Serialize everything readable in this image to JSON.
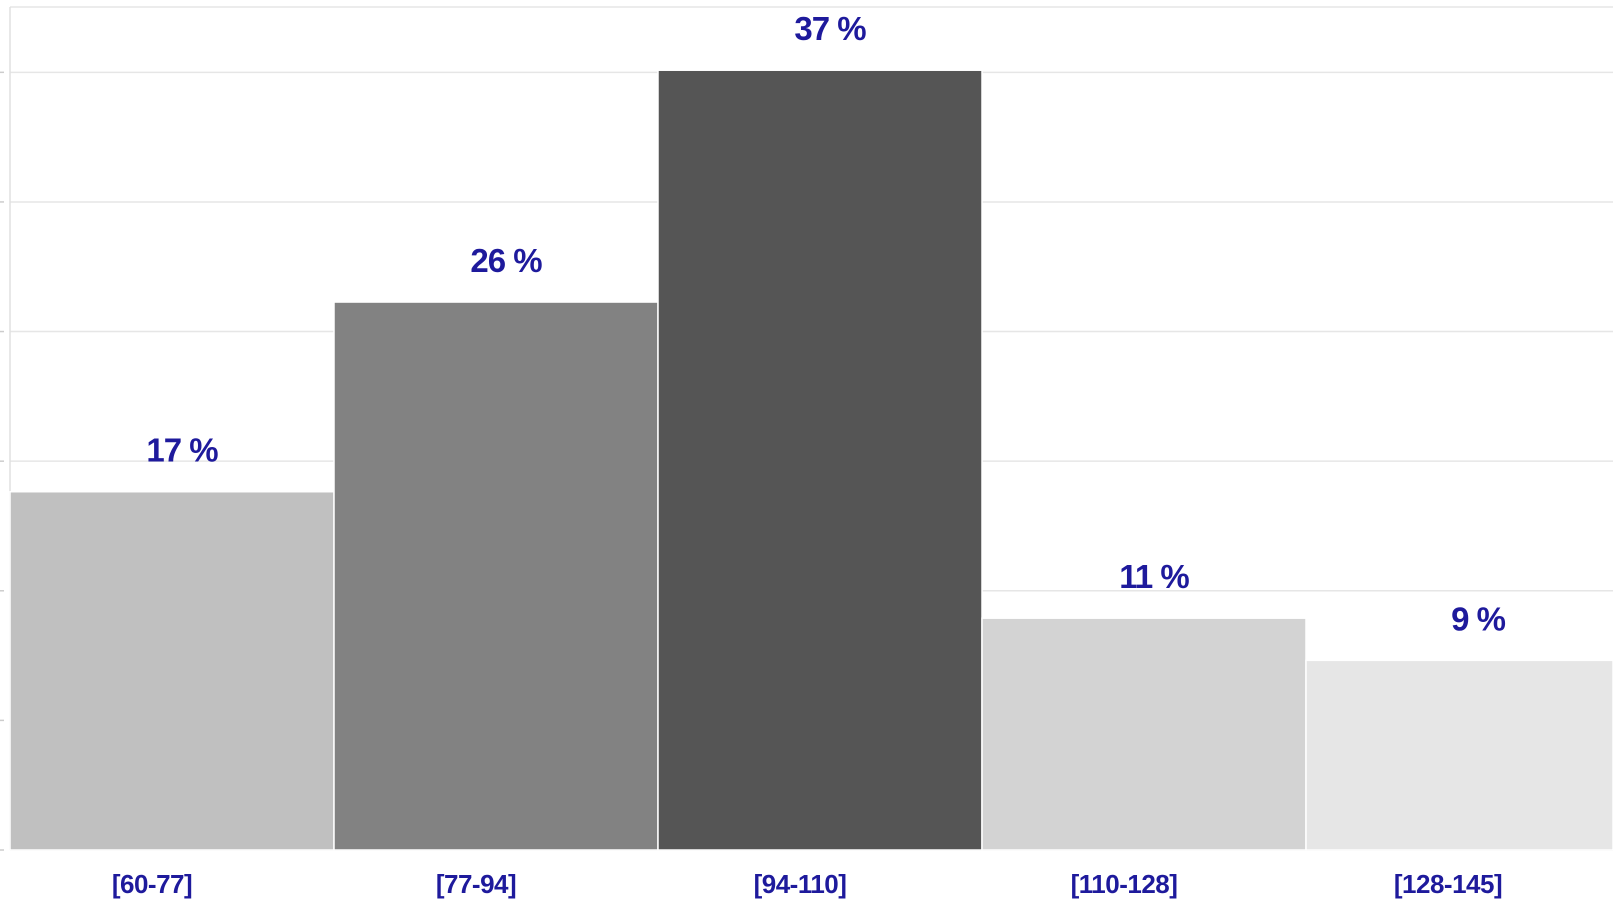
{
  "chart_data": {
    "type": "bar",
    "categories": [
      "[60-77]",
      "[77-94]",
      "[94-110]",
      "[110-128]",
      "[128-145]"
    ],
    "values": [
      17,
      26,
      37,
      11,
      9
    ],
    "data_labels": [
      "17 %",
      "26 %",
      "37 %",
      "11 %",
      "9 %"
    ],
    "bar_colors": [
      "#c0c0c0",
      "#828282",
      "#555555",
      "#d3d3d3",
      "#e6e6e6"
    ],
    "label_color": "#1e1a9c",
    "title": "",
    "xlabel": "",
    "ylabel": "",
    "ylim": [
      0,
      40
    ],
    "grid": true,
    "legend": false
  }
}
